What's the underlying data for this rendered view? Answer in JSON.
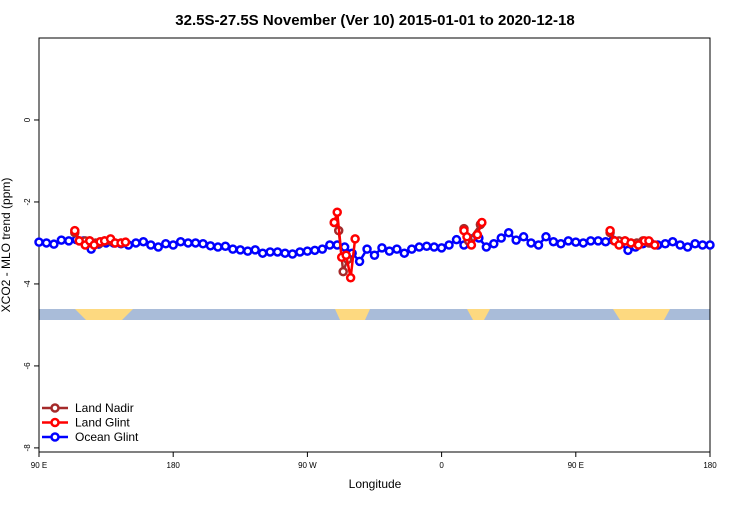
{
  "chart_data": {
    "type": "line",
    "title": "32.5S-27.5S November (Ver 10)   2015-01-01 to 2020-12-18",
    "x_label": "Longitude",
    "y_label": "XCO2 - MLO trend (ppm)",
    "xlim": [
      90,
      540
    ],
    "xticks": [
      {
        "value": 90,
        "label": "90 E"
      },
      180,
      {
        "value": 270,
        "label": "90 W"
      },
      {
        "value": 360,
        "label": "0"
      },
      {
        "value": 450,
        "label": "90 E"
      },
      {
        "value": 540,
        "label": "180"
      }
    ],
    "ylim": [
      -8.1,
      2
    ],
    "yticks": [
      0,
      -2,
      -4,
      -6,
      -8
    ],
    "legend": "bottom-left",
    "series": [
      {
        "name": "Ocean Glint",
        "color": "#0000ff",
        "x": [
          90,
          95,
          100,
          105,
          110,
          115,
          120,
          125,
          130,
          135,
          140,
          145,
          150,
          155,
          160,
          165,
          170,
          175,
          180,
          185,
          190,
          195,
          200,
          205,
          210,
          215,
          220,
          225,
          230,
          235,
          240,
          245,
          250,
          255,
          260,
          265,
          270,
          275,
          280,
          285,
          290,
          295,
          300,
          305,
          310,
          315,
          320,
          325,
          330,
          335,
          340,
          345,
          350,
          355,
          360,
          365,
          370,
          375,
          380,
          385,
          390,
          395,
          400,
          405,
          410,
          415,
          420,
          425,
          430,
          435,
          440,
          445,
          450,
          455,
          460,
          465,
          470,
          475,
          480,
          485,
          490,
          495,
          500,
          505,
          510,
          515,
          520,
          525,
          530,
          535,
          540
        ],
        "values": [
          -2.98,
          -3.0,
          -3.03,
          -2.93,
          -2.95,
          -2.92,
          -2.95,
          -3.15,
          -3.03,
          -3.0,
          -3.0,
          -3.02,
          -3.05,
          -3.0,
          -2.97,
          -3.05,
          -3.1,
          -3.02,
          -3.05,
          -2.97,
          -3.0,
          -3.0,
          -3.02,
          -3.07,
          -3.1,
          -3.08,
          -3.15,
          -3.17,
          -3.2,
          -3.17,
          -3.25,
          -3.22,
          -3.22,
          -3.25,
          -3.27,
          -3.22,
          -3.2,
          -3.18,
          -3.15,
          -3.05,
          -3.05,
          -3.1,
          -3.25,
          -3.45,
          -3.15,
          -3.3,
          -3.12,
          -3.2,
          -3.15,
          -3.25,
          -3.15,
          -3.1,
          -3.08,
          -3.1,
          -3.12,
          -3.05,
          -2.92,
          -3.05,
          -2.9,
          -2.88,
          -3.1,
          -3.02,
          -2.88,
          -2.75,
          -2.93,
          -2.85,
          -3.0,
          -3.05,
          -2.85,
          -2.97,
          -3.02,
          -2.95,
          -2.98,
          -3.0,
          -2.95,
          -2.95,
          -2.97,
          -2.93,
          -3.02,
          -3.18,
          -3.1,
          -3.02,
          -3.0,
          -3.05,
          -3.02,
          -2.97,
          -3.05,
          -3.1,
          -3.02,
          -3.05,
          -3.05
        ]
      },
      {
        "name": "Land Nadir",
        "color": "#a52a2a",
        "x": [
          114,
          117,
          121,
          124,
          128,
          131,
          134,
          138,
          141,
          145,
          200,
          288,
          291,
          294,
          297,
          340,
          375,
          378,
          386,
          430,
          473,
          476,
          479,
          483,
          487,
          491,
          495,
          499
        ],
        "values": [
          -2.75,
          -2.95,
          -2.95,
          -2.95,
          -3.0,
          -3.0,
          -2.95,
          -2.95,
          -3.0,
          -3.0,
          null,
          -2.5,
          -2.7,
          -3.7,
          -3.4,
          null,
          -2.65,
          -2.95,
          -2.55,
          null,
          -2.75,
          -2.95,
          -2.95,
          -2.95,
          -3.0,
          -3.0,
          -2.95,
          -3.0
        ]
      },
      {
        "name": "Land Glint",
        "color": "#ff0000",
        "x": [
          114,
          117,
          121,
          124,
          127,
          131,
          134,
          138,
          141,
          145,
          148,
          200,
          288,
          290,
          293,
          296,
          299,
          302,
          340,
          375,
          377,
          380,
          384,
          387,
          430,
          473,
          476,
          479,
          483,
          487,
          492,
          496,
          499,
          503
        ],
        "values": [
          -2.7,
          -2.95,
          -3.05,
          -2.95,
          -3.05,
          -2.97,
          -2.95,
          -2.9,
          -3.0,
          -3.0,
          -2.98,
          null,
          -2.5,
          -2.25,
          -3.35,
          -3.3,
          -3.85,
          -2.9,
          null,
          -2.7,
          -2.85,
          -3.05,
          -2.8,
          -2.5,
          null,
          -2.7,
          -2.95,
          -3.05,
          -2.95,
          -3.0,
          -3.05,
          -2.95,
          -2.95,
          -3.05
        ]
      }
    ],
    "legend_order": [
      "Land Nadir",
      "Land Glint",
      "Ocean Glint"
    ]
  }
}
